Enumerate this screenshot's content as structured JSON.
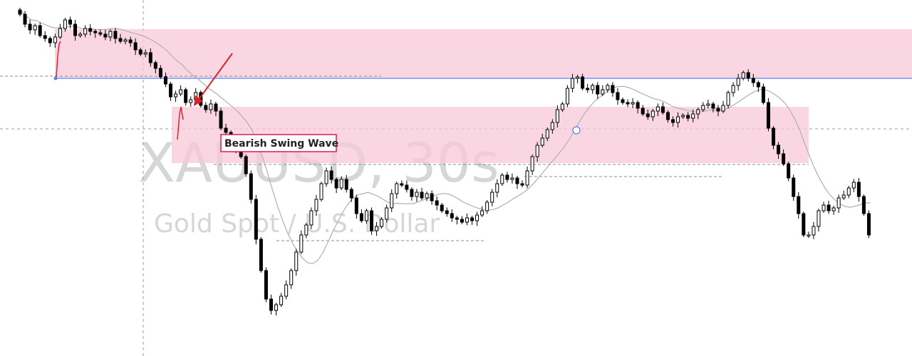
{
  "chart_data": {
    "type": "candlestick",
    "symbol": "XAUUSD, 30s",
    "description": "Gold Spot / U.S. Dollar",
    "annotation": "Bearish Swing Wave",
    "grid": false,
    "colors": {
      "up_body": "#ffffff",
      "down_body": "#000000",
      "wick": "#000000",
      "zone_fill": "#f8c8d9",
      "moving_average": "#b0b0b0",
      "horizontal_line": "#5b7cf0",
      "arrow": "#e0202a",
      "label_border": "#d81b60",
      "level_dashes": "#8a8aa6"
    },
    "closes": [
      500,
      493,
      489,
      492,
      485,
      483,
      480,
      484,
      490,
      496,
      493,
      485,
      486,
      490,
      488,
      487,
      486,
      484,
      488,
      483,
      481,
      482,
      480,
      475,
      472,
      473,
      466,
      462,
      456,
      451,
      442,
      444,
      447,
      438,
      440,
      445,
      436,
      433,
      437,
      432,
      420,
      417,
      408,
      406,
      400,
      388,
      370,
      342,
      320,
      300,
      292,
      296,
      302,
      310,
      320,
      333,
      345,
      352,
      362,
      370,
      381,
      390,
      384,
      378,
      384,
      377,
      371,
      360,
      355,
      362,
      348,
      351,
      356,
      364,
      374,
      381,
      380,
      377,
      372,
      375,
      371,
      374,
      369,
      366,
      362,
      360,
      357,
      356,
      354,
      357,
      355,
      359,
      362,
      368,
      375,
      381,
      387,
      384,
      385,
      381,
      380,
      390,
      400,
      408,
      413,
      419,
      424,
      433,
      437,
      448,
      455,
      456,
      448,
      447,
      450,
      444,
      447,
      450,
      445,
      440,
      438,
      437,
      438,
      434,
      430,
      428,
      432,
      435,
      431,
      426,
      424,
      428,
      429,
      427,
      430,
      433,
      436,
      437,
      434,
      432,
      436,
      445,
      450,
      455,
      459,
      455,
      452,
      449,
      438,
      420,
      408,
      402,
      395,
      385,
      372,
      360,
      345,
      345,
      351,
      362,
      366,
      362,
      364,
      371,
      373,
      378,
      382,
      372,
      360,
      345
    ]
  }
}
